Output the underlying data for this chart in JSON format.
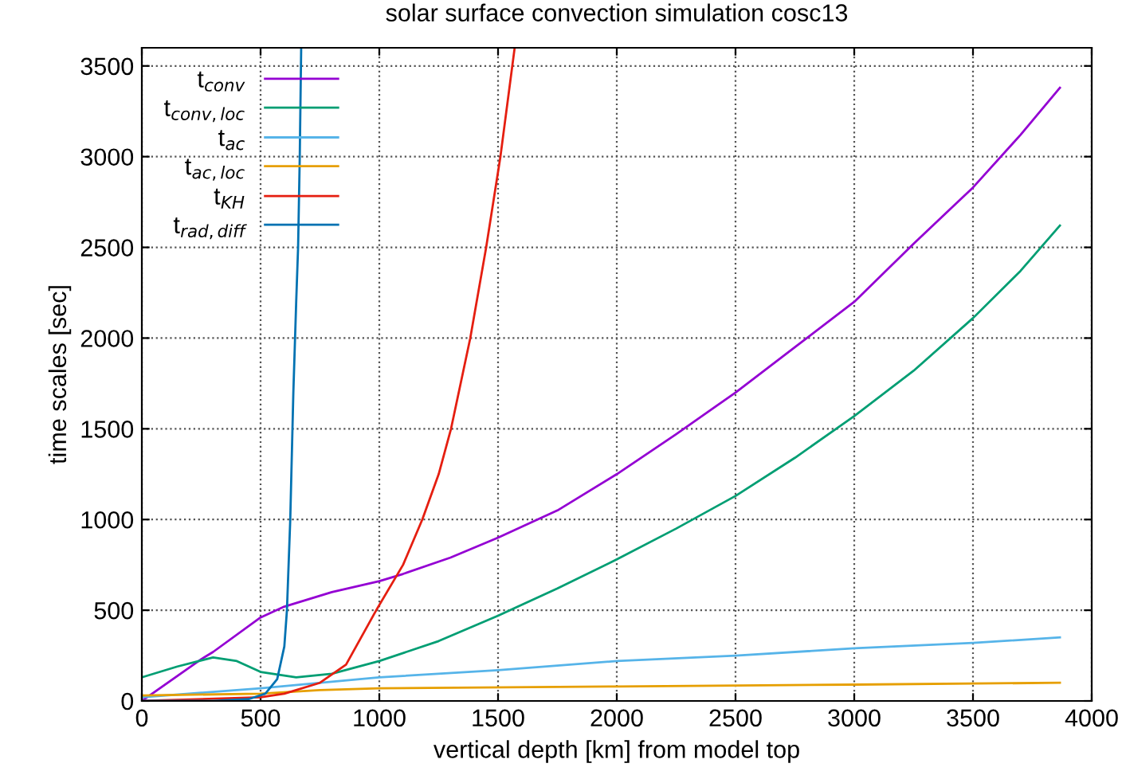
{
  "chart_data": {
    "type": "line",
    "title": "solar surface convection simulation cosc13",
    "xlabel": "vertical depth [km] from model top",
    "ylabel": "time scales [sec]",
    "xlim": [
      0,
      4000
    ],
    "ylim": [
      0,
      3600
    ],
    "xticks": [
      0,
      500,
      1000,
      1500,
      2000,
      2500,
      3000,
      3500,
      4000
    ],
    "yticks": [
      0,
      500,
      1000,
      1500,
      2000,
      2500,
      3000,
      3500
    ],
    "grid": true,
    "legend": "top left",
    "line_style": "solid",
    "marker": "none",
    "series": [
      {
        "name": "t$_{conv}$",
        "color": "#9400d3",
        "x": [
          0,
          250,
          300,
          500,
          600,
          800,
          1000,
          1100,
          1300,
          1500,
          1750,
          2000,
          2250,
          2500,
          2750,
          3000,
          3250,
          3500,
          3700,
          3866
        ],
        "values": [
          0,
          230,
          270,
          460,
          520,
          600,
          660,
          700,
          790,
          900,
          1050,
          1250,
          1470,
          1700,
          1950,
          2200,
          2520,
          2830,
          3120,
          3380
        ]
      },
      {
        "name": "t$_{conv,loc}$",
        "color": "#009e73",
        "x": [
          0,
          150,
          300,
          400,
          500,
          650,
          800,
          1000,
          1250,
          1500,
          1750,
          2000,
          2250,
          2500,
          2750,
          3000,
          3250,
          3500,
          3700,
          3866
        ],
        "values": [
          130,
          190,
          240,
          220,
          160,
          130,
          150,
          220,
          330,
          470,
          620,
          780,
          950,
          1130,
          1340,
          1570,
          1820,
          2110,
          2370,
          2620
        ]
      },
      {
        "name": "t$_{ac}$",
        "color": "#56b4e9",
        "x": [
          0,
          500,
          1000,
          1500,
          2000,
          2500,
          3000,
          3500,
          3866
        ],
        "values": [
          20,
          70,
          130,
          170,
          220,
          250,
          290,
          320,
          350
        ]
      },
      {
        "name": "t$_{ac,loc}$",
        "color": "#e69f00",
        "x": [
          0,
          500,
          750,
          1000,
          2000,
          3000,
          3866
        ],
        "values": [
          30,
          40,
          60,
          70,
          80,
          90,
          100
        ]
      },
      {
        "name": "t$_{KH}$",
        "color": "#e51e10",
        "x": [
          0,
          500,
          600,
          750,
          860,
          987,
          1100,
          1181,
          1250,
          1302,
          1383,
          1450,
          1510,
          1570
        ],
        "values": [
          0,
          20,
          40,
          100,
          200,
          500,
          750,
          1000,
          1250,
          1500,
          2000,
          2500,
          3000,
          3600
        ]
      },
      {
        "name": "t$_{rad,diff}$",
        "color": "#0072b2",
        "x": [
          0,
          300,
          450,
          520,
          570,
          600,
          611,
          625,
          638,
          650,
          658,
          665,
          671
        ],
        "values": [
          0,
          0,
          10,
          40,
          120,
          300,
          500,
          1000,
          1700,
          2200,
          2500,
          3000,
          3600
        ]
      }
    ]
  }
}
